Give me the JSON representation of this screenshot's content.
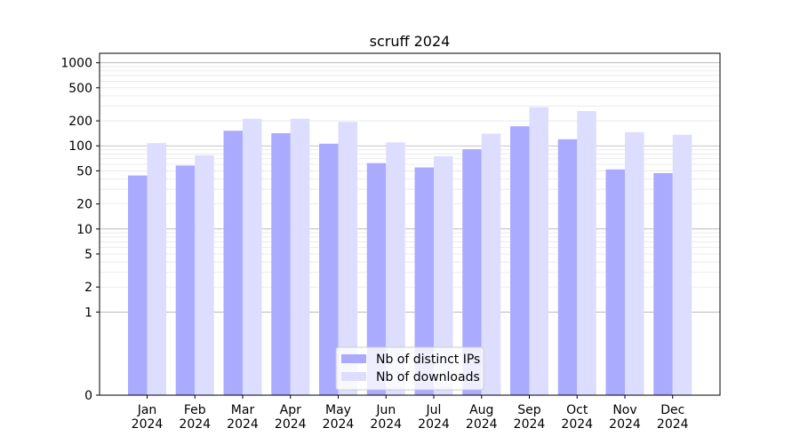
{
  "chart_data": {
    "type": "bar",
    "title": "scruff 2024",
    "xlabel": "",
    "ylabel": "",
    "yscale": "symlog",
    "ylim": [
      0,
      1300
    ],
    "yticks": [
      0,
      1,
      2,
      5,
      10,
      20,
      50,
      100,
      200,
      500,
      1000
    ],
    "ytick_labels": [
      "0",
      "1",
      "2",
      "5",
      "10",
      "20",
      "50",
      "100",
      "200",
      "500",
      "1000"
    ],
    "grid": true,
    "legend_position": "bottom-center",
    "categories": [
      {
        "month": "Jan",
        "year": "2024"
      },
      {
        "month": "Feb",
        "year": "2024"
      },
      {
        "month": "Mar",
        "year": "2024"
      },
      {
        "month": "Apr",
        "year": "2024"
      },
      {
        "month": "May",
        "year": "2024"
      },
      {
        "month": "Jun",
        "year": "2024"
      },
      {
        "month": "Jul",
        "year": "2024"
      },
      {
        "month": "Aug",
        "year": "2024"
      },
      {
        "month": "Sep",
        "year": "2024"
      },
      {
        "month": "Oct",
        "year": "2024"
      },
      {
        "month": "Nov",
        "year": "2024"
      },
      {
        "month": "Dec",
        "year": "2024"
      }
    ],
    "series": [
      {
        "name": "Nb of distinct IPs",
        "color": "#aaaaff",
        "values": [
          44,
          58,
          152,
          142,
          106,
          62,
          55,
          91,
          172,
          120,
          52,
          47
        ]
      },
      {
        "name": "Nb of downloads",
        "color": "#ddddff",
        "values": [
          108,
          77,
          212,
          212,
          194,
          110,
          75,
          140,
          292,
          262,
          146,
          136
        ]
      }
    ]
  }
}
